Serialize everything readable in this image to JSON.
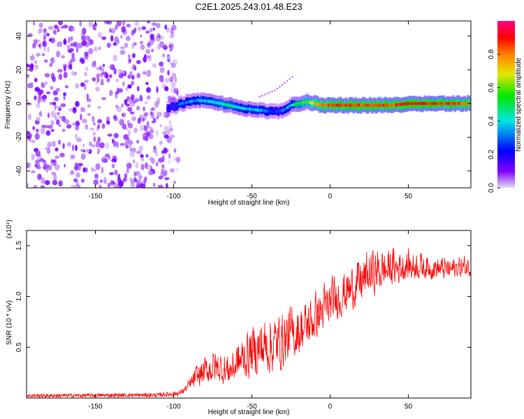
{
  "chart_data": [
    {
      "type": "heatmap",
      "title": "C2E1.2025.243.01.48.E23",
      "xlabel": "Height of straight line (km)",
      "ylabel": "Frequency (Hz)",
      "xlim": [
        -194,
        90
      ],
      "ylim": [
        -50,
        49
      ],
      "xticks": [
        -150,
        -100,
        -50,
        0,
        50
      ],
      "yticks": [
        -40,
        -20,
        0,
        20,
        40
      ],
      "colorbar": {
        "label": "Normalized spectral amplitude",
        "range": [
          0.0,
          1.0
        ],
        "ticks": [
          0.0,
          0.2,
          0.4,
          0.6,
          0.8
        ],
        "colors": [
          "#e6dcf2",
          "#8000ff",
          "#0000ff",
          "#00e5e5",
          "#00e600",
          "#e6e600",
          "#ff8000",
          "#ff0000",
          "#ff0080"
        ]
      },
      "noise_region": {
        "x_from": -194,
        "x_to": -97,
        "amplitude": [
          0.02,
          0.12
        ]
      },
      "ridge": {
        "x": [
          -104,
          -95,
          -85,
          -75,
          -65,
          -55,
          -45,
          -35,
          -30,
          -25,
          -20,
          -15,
          -10,
          -5,
          0,
          10,
          20,
          30,
          40,
          50,
          60,
          70,
          80,
          90
        ],
        "freq": [
          -3,
          0,
          2,
          1,
          -1,
          -3,
          -4,
          -5,
          -4,
          -1,
          0,
          1,
          0,
          -1,
          -1,
          -1,
          -1,
          -1,
          -1,
          0,
          0,
          0,
          0,
          0
        ],
        "peak_amplitude": [
          0.2,
          0.3,
          0.35,
          0.4,
          0.45,
          0.4,
          0.35,
          0.25,
          0.3,
          0.4,
          0.55,
          0.6,
          0.75,
          0.8,
          0.85,
          0.85,
          0.85,
          0.85,
          0.85,
          0.9,
          0.9,
          0.85,
          0.85,
          0.8
        ]
      },
      "faint_streak": {
        "x": [
          -45,
          -35,
          -28,
          -24
        ],
        "freq": [
          4,
          8,
          13,
          16
        ]
      }
    },
    {
      "type": "line",
      "xlabel": "Height of straight line (km)",
      "ylabel": "SNR (10 * v/v)",
      "y_scale_label": "(x10⁴)",
      "xlim": [
        -194,
        90
      ],
      "ylim": [
        0,
        1.65
      ],
      "xticks": [
        -150,
        -100,
        -50,
        0,
        50
      ],
      "yticks": [
        0.5,
        1.0,
        1.5
      ],
      "ytick_labels": [
        "0.5",
        "1.0",
        "1.5"
      ],
      "series": [
        {
          "name": "SNR",
          "color": "#ff0000",
          "trend": {
            "x": [
              -194,
              -110,
              -97,
              -92,
              -85,
              -75,
              -65,
              -55,
              -45,
              -35,
              -25,
              -15,
              -5,
              5,
              15,
              25,
              35,
              45,
              55,
              65,
              75,
              90
            ],
            "lo": [
              0.005,
              0.01,
              0.02,
              0.05,
              0.08,
              0.12,
              0.1,
              0.15,
              0.18,
              0.2,
              0.3,
              0.45,
              0.6,
              0.75,
              0.85,
              0.95,
              1.05,
              1.1,
              1.15,
              1.15,
              1.15,
              1.18
            ],
            "hi": [
              0.04,
              0.05,
              0.07,
              0.15,
              0.38,
              0.55,
              0.5,
              0.72,
              0.9,
              0.95,
              1.0,
              1.05,
              1.2,
              1.3,
              1.4,
              1.55,
              1.55,
              1.55,
              1.5,
              1.45,
              1.42,
              1.45
            ]
          }
        }
      ]
    }
  ]
}
